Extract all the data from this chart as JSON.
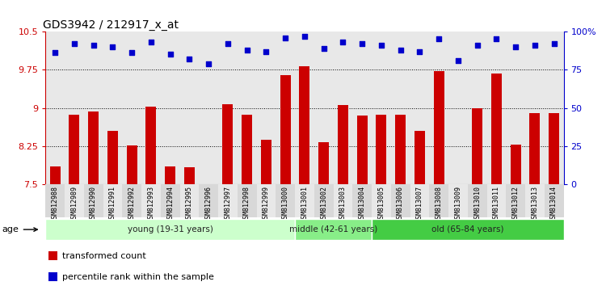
{
  "title": "GDS3942 / 212917_x_at",
  "samples": [
    "GSM812988",
    "GSM812989",
    "GSM812990",
    "GSM812991",
    "GSM812992",
    "GSM812993",
    "GSM812994",
    "GSM812995",
    "GSM812996",
    "GSM812997",
    "GSM812998",
    "GSM812999",
    "GSM813000",
    "GSM813001",
    "GSM813002",
    "GSM813003",
    "GSM813004",
    "GSM813005",
    "GSM813006",
    "GSM813007",
    "GSM813008",
    "GSM813009",
    "GSM813010",
    "GSM813011",
    "GSM813012",
    "GSM813013",
    "GSM813014"
  ],
  "bar_values": [
    7.85,
    8.87,
    8.93,
    8.55,
    8.27,
    9.02,
    7.85,
    7.84,
    7.48,
    9.07,
    8.87,
    8.37,
    9.65,
    9.82,
    8.33,
    9.05,
    8.85,
    8.87,
    8.87,
    8.55,
    9.72,
    7.5,
    9.0,
    9.67,
    8.28,
    8.9,
    8.9
  ],
  "percentile_values": [
    86,
    92,
    91,
    90,
    86,
    93,
    85,
    82,
    79,
    92,
    88,
    87,
    96,
    97,
    89,
    93,
    92,
    91,
    88,
    87,
    95,
    81,
    91,
    95,
    90,
    91,
    92
  ],
  "bar_color": "#CC0000",
  "percentile_color": "#0000CC",
  "ylim_left": [
    7.5,
    10.5
  ],
  "ylim_right": [
    0,
    100
  ],
  "yticks_left": [
    7.5,
    8.25,
    9.0,
    9.75,
    10.5
  ],
  "yticks_right": [
    0,
    25,
    50,
    75,
    100
  ],
  "ytick_labels_left": [
    "7.5",
    "8.25",
    "9",
    "9.75",
    "10.5"
  ],
  "ytick_labels_right": [
    "0",
    "25",
    "50",
    "75",
    "100%"
  ],
  "hlines": [
    8.25,
    9.0,
    9.75
  ],
  "groups": [
    {
      "label": "young (19-31 years)",
      "start": 0,
      "end": 13,
      "color": "#ccffcc"
    },
    {
      "label": "middle (42-61 years)",
      "start": 13,
      "end": 17,
      "color": "#88ee88"
    },
    {
      "label": "old (65-84 years)",
      "start": 17,
      "end": 27,
      "color": "#44cc44"
    }
  ],
  "age_label": "age",
  "legend_entries": [
    {
      "label": "transformed count",
      "color": "#CC0000"
    },
    {
      "label": "percentile rank within the sample",
      "color": "#0000CC"
    }
  ],
  "bar_width": 0.55,
  "background_color": "#e8e8e8",
  "tick_label_fontsize": 6.0,
  "title_fontsize": 10
}
